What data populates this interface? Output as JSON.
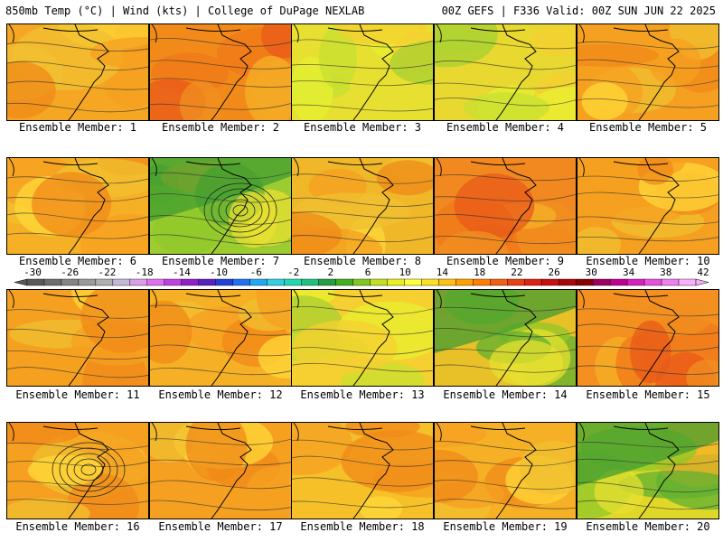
{
  "header": {
    "left": "850mb Temp (°C) | Wind (kts) | College of DuPage NEXLAB",
    "right": "00Z GEFS | F336 Valid: 00Z SUN JUN 22 2025"
  },
  "colorbar": {
    "labels": [
      "-30",
      "-26",
      "-22",
      "-18",
      "-14",
      "-10",
      "-6",
      "-2",
      "2",
      "6",
      "10",
      "14",
      "18",
      "22",
      "26",
      "30",
      "34",
      "38",
      "42"
    ],
    "colors": [
      "#5a5a5a",
      "#6e6e6e",
      "#848484",
      "#9a9a9a",
      "#b0b0b0",
      "#c4b8d8",
      "#d89ee8",
      "#e070f0",
      "#c040e0",
      "#9020c8",
      "#5a20c0",
      "#2040d8",
      "#2070f0",
      "#20a8f0",
      "#30d0e0",
      "#20d8b0",
      "#20c080",
      "#20a040",
      "#40b020",
      "#80c820",
      "#c0e020",
      "#e8f020",
      "#ffff40",
      "#ffe020",
      "#ffc010",
      "#ffa000",
      "#ff8000",
      "#f06010",
      "#e84010",
      "#e02010",
      "#c81010",
      "#a80808",
      "#880000",
      "#a00060",
      "#c00090",
      "#d820c0",
      "#e850e0",
      "#f080f0",
      "#f8b0f8"
    ]
  },
  "members": [
    {
      "label": "Ensemble Member: 1",
      "base": "#f5a623",
      "tone": "warm"
    },
    {
      "label": "Ensemble Member: 2",
      "base": "#f28a1a",
      "tone": "hot"
    },
    {
      "label": "Ensemble Member: 3",
      "base": "#e8e030",
      "tone": "cool"
    },
    {
      "label": "Ensemble Member: 4",
      "base": "#e8d830",
      "tone": "cool"
    },
    {
      "label": "Ensemble Member: 5",
      "base": "#f5a020",
      "tone": "warm"
    },
    {
      "label": "Ensemble Member: 6",
      "base": "#f5b025",
      "tone": "warm"
    },
    {
      "label": "Ensemble Member: 7",
      "base": "#9ccc30",
      "tone": "green"
    },
    {
      "label": "Ensemble Member: 8",
      "base": "#f0b828",
      "tone": "warm"
    },
    {
      "label": "Ensemble Member: 9",
      "base": "#f28820",
      "tone": "hot"
    },
    {
      "label": "Ensemble Member: 10",
      "base": "#f5a020",
      "tone": "warm"
    },
    {
      "label": "Ensemble Member: 11",
      "base": "#f5a020",
      "tone": "warm"
    },
    {
      "label": "Ensemble Member: 12",
      "base": "#f5b025",
      "tone": "warm"
    },
    {
      "label": "Ensemble Member: 13",
      "base": "#f5d030",
      "tone": "cool"
    },
    {
      "label": "Ensemble Member: 14",
      "base": "#e8c028",
      "tone": "green"
    },
    {
      "label": "Ensemble Member: 15",
      "base": "#f39020",
      "tone": "hot"
    },
    {
      "label": "Ensemble Member: 16",
      "base": "#f5a020",
      "tone": "warm"
    },
    {
      "label": "Ensemble Member: 17",
      "base": "#f5a020",
      "tone": "warm"
    },
    {
      "label": "Ensemble Member: 18",
      "base": "#f5c028",
      "tone": "warm"
    },
    {
      "label": "Ensemble Member: 19",
      "base": "#f5b025",
      "tone": "warm"
    },
    {
      "label": "Ensemble Member: 20",
      "base": "#e0d828",
      "tone": "green"
    }
  ]
}
